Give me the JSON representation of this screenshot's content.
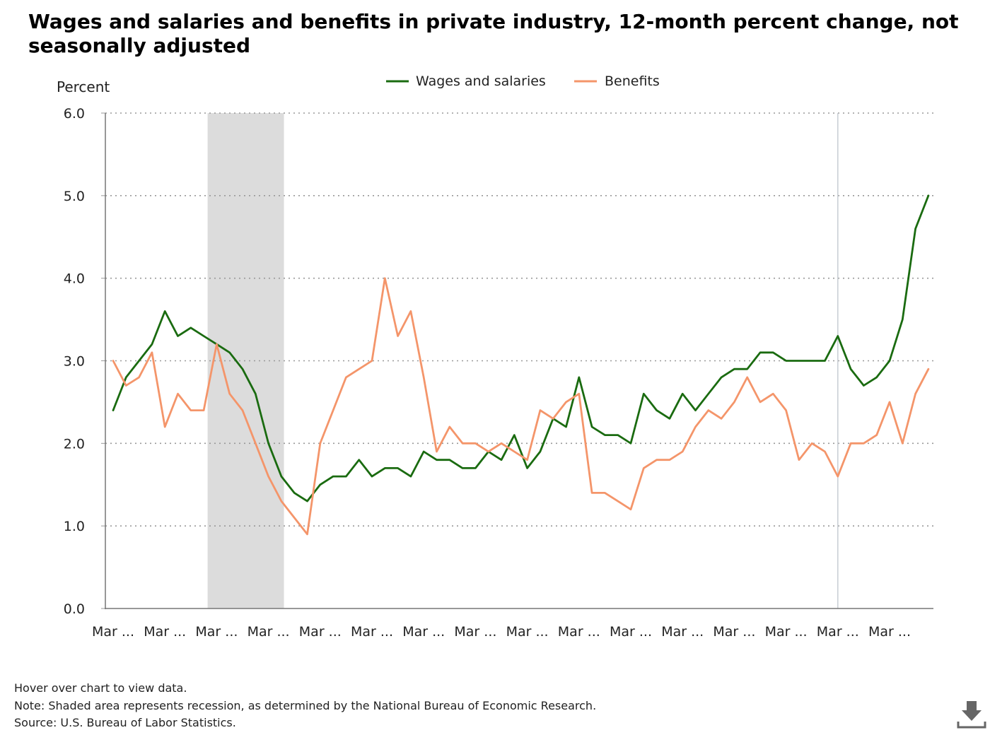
{
  "title": "Wages and salaries and benefits in private industry, 12-month percent change, not seasonally adjusted",
  "footnotes": {
    "hover": "Hover over chart to view data.",
    "note": "Note: Shaded area represents recession, as determined by the National Bureau of Economic Research.",
    "source": "Source: U.S. Bureau of Labor Statistics."
  },
  "download_icon": "download-icon",
  "chart_data": {
    "type": "line",
    "title": "Wages and salaries and benefits in private industry, 12-month percent change, not seasonally adjusted",
    "ylabel": "Percent",
    "xlabel": "",
    "ylim": [
      0,
      6
    ],
    "yticks": [
      "0.0",
      "1.0",
      "2.0",
      "3.0",
      "4.0",
      "5.0",
      "6.0"
    ],
    "grid": true,
    "legend_position": "top-center",
    "x_tick_labels": [
      "Mar ...",
      "Mar ...",
      "Mar ...",
      "Mar ...",
      "Mar ...",
      "Mar ...",
      "Mar ...",
      "Mar ...",
      "Mar ...",
      "Mar ...",
      "Mar ...",
      "Mar ...",
      "Mar ...",
      "Mar ...",
      "Mar ...",
      "Mar ..."
    ],
    "recession_index_range": [
      7.3,
      13.2
    ],
    "reference_line_index": 56,
    "series": [
      {
        "name": "Wages and salaries",
        "color": "#1a6b10",
        "values": [
          2.4,
          2.8,
          3.0,
          3.2,
          3.6,
          3.3,
          3.4,
          3.3,
          3.2,
          3.1,
          2.9,
          2.6,
          2.0,
          1.6,
          1.4,
          1.3,
          1.5,
          1.6,
          1.6,
          1.8,
          1.6,
          1.7,
          1.7,
          1.6,
          1.9,
          1.8,
          1.8,
          1.7,
          1.7,
          1.9,
          1.8,
          2.1,
          1.7,
          1.9,
          2.3,
          2.2,
          2.8,
          2.2,
          2.1,
          2.1,
          2.0,
          2.6,
          2.4,
          2.3,
          2.6,
          2.4,
          2.6,
          2.8,
          2.9,
          2.9,
          3.1,
          3.1,
          3.0,
          3.0,
          3.0,
          3.0,
          3.3,
          2.9,
          2.7,
          2.8,
          3.0,
          3.5,
          4.6,
          5.0
        ]
      },
      {
        "name": "Benefits",
        "color": "#f4956a",
        "values": [
          3.0,
          2.7,
          2.8,
          3.1,
          2.2,
          2.6,
          2.4,
          2.4,
          3.2,
          2.6,
          2.4,
          2.0,
          1.6,
          1.3,
          1.1,
          0.9,
          2.0,
          2.4,
          2.8,
          2.9,
          3.0,
          4.0,
          3.3,
          3.6,
          2.8,
          1.9,
          2.2,
          2.0,
          2.0,
          1.9,
          2.0,
          1.9,
          1.8,
          2.4,
          2.3,
          2.5,
          2.6,
          1.4,
          1.4,
          1.3,
          1.2,
          1.7,
          1.8,
          1.8,
          1.9,
          2.2,
          2.4,
          2.3,
          2.5,
          2.8,
          2.5,
          2.6,
          2.4,
          1.8,
          2.0,
          1.9,
          1.6,
          2.0,
          2.0,
          2.1,
          2.5,
          2.0,
          2.6,
          2.9
        ]
      }
    ]
  }
}
